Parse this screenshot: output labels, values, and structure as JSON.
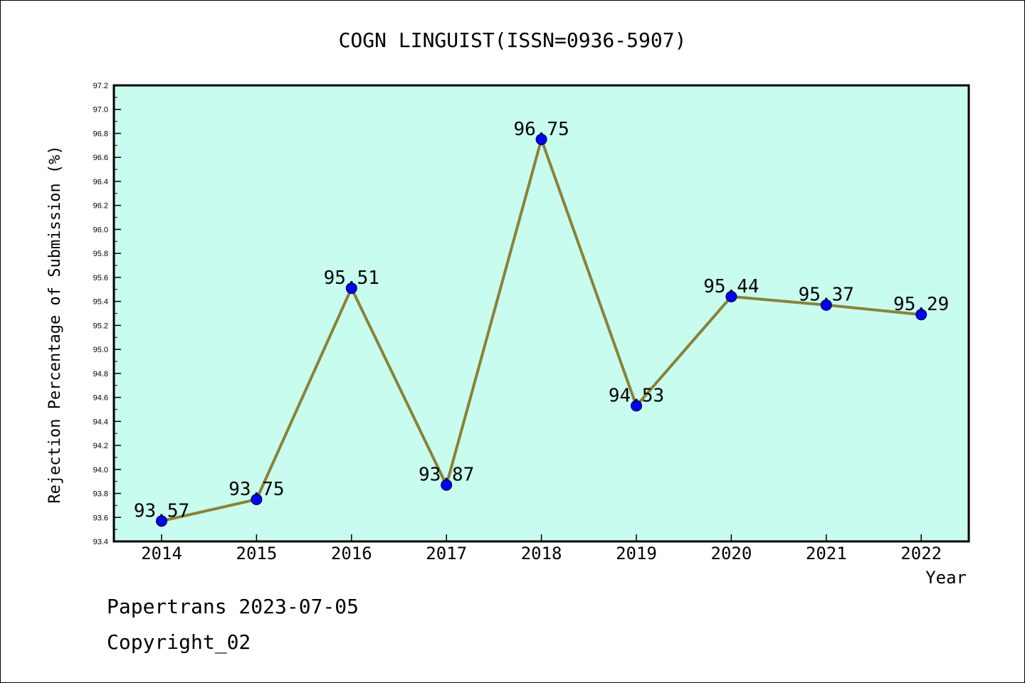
{
  "chart_data": {
    "type": "line",
    "title": "COGN LINGUIST(ISSN=0936-5907)",
    "xlabel": "Year",
    "ylabel": "Rejection Percentage of Submission (%)",
    "categories": [
      "2014",
      "2015",
      "2016",
      "2017",
      "2018",
      "2019",
      "2020",
      "2021",
      "2022"
    ],
    "values": [
      93.57,
      93.75,
      95.51,
      93.87,
      96.75,
      94.53,
      95.44,
      95.37,
      95.29
    ],
    "data_labels": [
      "93.57",
      "93.75",
      "95.51",
      "93.87",
      "96.75",
      "94.53",
      "95.44",
      "95.37",
      "95.29"
    ],
    "ylim": [
      93.4,
      97.2
    ],
    "yticks": [
      "93.4",
      "93.6",
      "93.8",
      "94.0",
      "94.2",
      "94.4",
      "94.6",
      "94.8",
      "95.0",
      "95.2",
      "95.4",
      "95.6",
      "95.8",
      "96.0",
      "96.2",
      "96.4",
      "96.6",
      "96.8",
      "97.0",
      "97.2"
    ],
    "colors": {
      "plot_bg": "#c8fcee",
      "line": "#8b8236",
      "marker": "#0000ff"
    },
    "grid": false
  },
  "footer": {
    "line1": "Papertrans 2023-07-05",
    "line2": "Copyright_02"
  }
}
